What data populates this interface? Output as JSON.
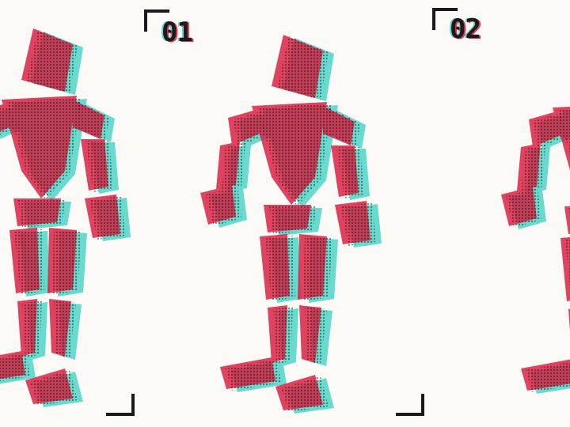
{
  "frames": [
    {
      "label": "01"
    },
    {
      "label": "02"
    }
  ],
  "colors": {
    "red": "#d9163a",
    "cyan": "#4fd6c8",
    "dark": "#2a1618",
    "paper": "#fbfaf6"
  }
}
